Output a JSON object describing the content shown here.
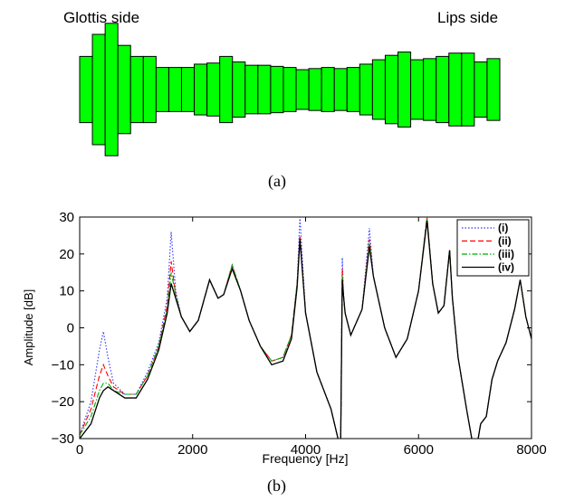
{
  "tube": {
    "left_label": "Glottis side",
    "right_label": "Lips side",
    "caption": "(a)",
    "fill_color": "#00ff00",
    "section_heights": [
      3,
      5,
      6,
      4,
      3,
      3,
      2,
      2,
      2,
      2.3,
      2.4,
      3,
      2.5,
      2.2,
      2.2,
      2.1,
      2,
      1.8,
      1.9,
      2,
      1.9,
      2,
      2.3,
      2.7,
      3.1,
      3.4,
      2.7,
      2.8,
      3,
      3.3,
      3.3,
      2.5,
      2.8
    ]
  },
  "chart_data": {
    "type": "line",
    "caption": "(b)",
    "xlabel": "Frequency [Hz]",
    "ylabel": "Amplitude [dB]",
    "xlim": [
      0,
      8000
    ],
    "ylim": [
      -30,
      30
    ],
    "xticks": [
      0,
      2000,
      4000,
      6000,
      8000
    ],
    "yticks": [
      -30,
      -20,
      -10,
      0,
      10,
      20,
      30
    ],
    "xtick_labels": [
      "0",
      "2000",
      "4000",
      "6000",
      "8000"
    ],
    "ytick_labels": [
      "−30",
      "−20",
      "−10",
      "0",
      "10",
      "20",
      "30"
    ],
    "grid": false,
    "legend_position": "top-right",
    "legend": [
      "(i)",
      "(ii)",
      "(iii)",
      "(iv)"
    ],
    "series": [
      {
        "name": "(i)",
        "color": "#3333ff",
        "style": "dotted",
        "x": [
          0,
          200,
          350,
          420,
          500,
          600,
          800,
          1000,
          1200,
          1400,
          1550,
          1620,
          1700,
          1800,
          1950,
          2100,
          2300,
          2450,
          2550,
          2700,
          2850,
          3000,
          3200,
          3400,
          3600,
          3750,
          3850,
          3900,
          4000,
          4200,
          4450,
          4620,
          4650,
          4670,
          4700,
          4800,
          5000,
          5130,
          5200,
          5400,
          5600,
          5800,
          6000,
          6150,
          6250,
          6350,
          6450,
          6550,
          6600,
          6700,
          6850,
          7000,
          7100,
          7200,
          7300,
          7400,
          7550,
          7700,
          7800,
          7900,
          8000
        ],
        "y": [
          -29,
          -20,
          -6,
          -1,
          -8,
          -15,
          -18,
          -18,
          -12,
          -4,
          8,
          26,
          10,
          3,
          -1,
          2,
          13,
          8,
          9,
          17,
          10,
          2,
          -5,
          -9,
          -8,
          -2,
          12,
          30,
          4,
          -12,
          -22,
          -33,
          19,
          9,
          4,
          -2,
          5,
          27,
          14,
          0,
          -8,
          -3,
          10,
          30,
          12,
          4,
          6,
          21,
          8,
          -8,
          -22,
          -35,
          -26,
          -24,
          -14,
          -9,
          -4,
          5,
          13,
          3,
          -3
        ]
      },
      {
        "name": "(ii)",
        "color": "#ff0000",
        "style": "dashed",
        "x": [
          0,
          200,
          350,
          420,
          500,
          600,
          800,
          1000,
          1200,
          1400,
          1550,
          1620,
          1700,
          1800,
          1950,
          2100,
          2300,
          2450,
          2550,
          2700,
          2850,
          3000,
          3200,
          3400,
          3600,
          3750,
          3850,
          3900,
          4000,
          4200,
          4450,
          4620,
          4650,
          4670,
          4700,
          4800,
          5000,
          5130,
          5200,
          5400,
          5600,
          5800,
          6000,
          6150,
          6250,
          6350,
          6450,
          6550,
          6600,
          6700,
          6850,
          7000,
          7100,
          7200,
          7300,
          7400,
          7550,
          7700,
          7800,
          7900,
          8000
        ],
        "y": [
          -29,
          -22,
          -13,
          -10,
          -13,
          -16,
          -18,
          -18,
          -13,
          -5,
          6,
          18,
          9,
          3,
          -1,
          2,
          13,
          8,
          9,
          17,
          10,
          2,
          -5,
          -9,
          -8,
          -2,
          12,
          25,
          4,
          -12,
          -22,
          -33,
          16,
          9,
          4,
          -2,
          5,
          24,
          14,
          0,
          -8,
          -3,
          10,
          30,
          12,
          4,
          6,
          21,
          8,
          -8,
          -22,
          -35,
          -26,
          -24,
          -14,
          -9,
          -4,
          5,
          13,
          3,
          -3
        ]
      },
      {
        "name": "(iii)",
        "color": "#00aa00",
        "style": "dashdot",
        "x": [
          0,
          200,
          350,
          420,
          500,
          600,
          800,
          1000,
          1200,
          1400,
          1550,
          1620,
          1700,
          1800,
          1950,
          2100,
          2300,
          2450,
          2550,
          2700,
          2850,
          3000,
          3200,
          3400,
          3600,
          3750,
          3850,
          3900,
          4000,
          4200,
          4450,
          4620,
          4650,
          4670,
          4700,
          4800,
          5000,
          5130,
          5200,
          5400,
          5600,
          5800,
          6000,
          6150,
          6250,
          6350,
          6450,
          6550,
          6600,
          6700,
          6850,
          7000,
          7100,
          7200,
          7300,
          7400,
          7550,
          7700,
          7800,
          7900,
          8000
        ],
        "y": [
          -29,
          -24,
          -17,
          -15,
          -15,
          -17,
          -18,
          -18,
          -13,
          -5,
          5,
          15,
          9,
          3,
          -1,
          2,
          13,
          8,
          9,
          17,
          10,
          2,
          -5,
          -9,
          -8,
          -2,
          12,
          24,
          4,
          -12,
          -22,
          -33,
          14,
          9,
          4,
          -2,
          5,
          23,
          14,
          0,
          -8,
          -3,
          10,
          30,
          12,
          4,
          6,
          21,
          8,
          -8,
          -22,
          -35,
          -26,
          -24,
          -14,
          -9,
          -4,
          5,
          13,
          3,
          -3
        ]
      },
      {
        "name": "(iv)",
        "color": "#000000",
        "style": "solid",
        "x": [
          0,
          200,
          350,
          420,
          500,
          600,
          800,
          1000,
          1200,
          1400,
          1550,
          1620,
          1700,
          1800,
          1950,
          2100,
          2300,
          2450,
          2550,
          2700,
          2850,
          3000,
          3200,
          3400,
          3600,
          3750,
          3850,
          3900,
          4000,
          4200,
          4450,
          4620,
          4650,
          4670,
          4700,
          4800,
          5000,
          5130,
          5200,
          5400,
          5600,
          5800,
          6000,
          6150,
          6250,
          6350,
          6450,
          6550,
          6600,
          6700,
          6850,
          7000,
          7100,
          7200,
          7300,
          7400,
          7550,
          7700,
          7800,
          7900,
          8000
        ],
        "y": [
          -30,
          -26,
          -19,
          -17,
          -16,
          -17,
          -19,
          -19,
          -14,
          -6,
          4,
          12,
          8,
          3,
          -1,
          2,
          13,
          8,
          9,
          16,
          10,
          2,
          -5,
          -10,
          -9,
          -3,
          11,
          24,
          4,
          -12,
          -22,
          -33,
          13,
          9,
          4,
          -2,
          5,
          22,
          14,
          0,
          -8,
          -3,
          10,
          29,
          12,
          4,
          6,
          21,
          8,
          -8,
          -22,
          -35,
          -26,
          -24,
          -14,
          -9,
          -4,
          5,
          13,
          3,
          -3
        ]
      }
    ]
  }
}
